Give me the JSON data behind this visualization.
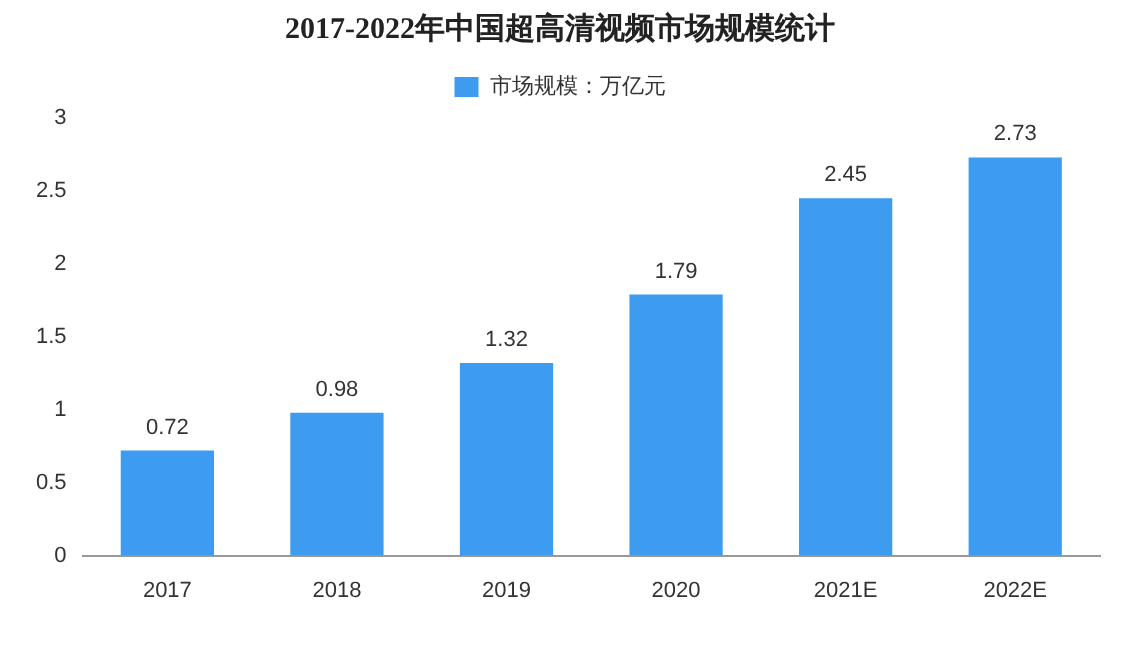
{
  "chart_data": {
    "type": "bar",
    "title": "2017-2022年中国超高清视频市场规模统计",
    "categories": [
      "2017",
      "2018",
      "2019",
      "2020",
      "2021E",
      "2022E"
    ],
    "series": [
      {
        "name": "市场规模：万亿元",
        "color": "#3d9cf0",
        "values": [
          0.72,
          0.98,
          1.32,
          1.79,
          2.45,
          2.73
        ]
      }
    ],
    "ylim": [
      0,
      3
    ],
    "yticks": [
      0,
      0.5,
      1,
      1.5,
      2,
      2.5,
      3
    ],
    "grid": false,
    "legend": "top",
    "data_labels": true
  }
}
